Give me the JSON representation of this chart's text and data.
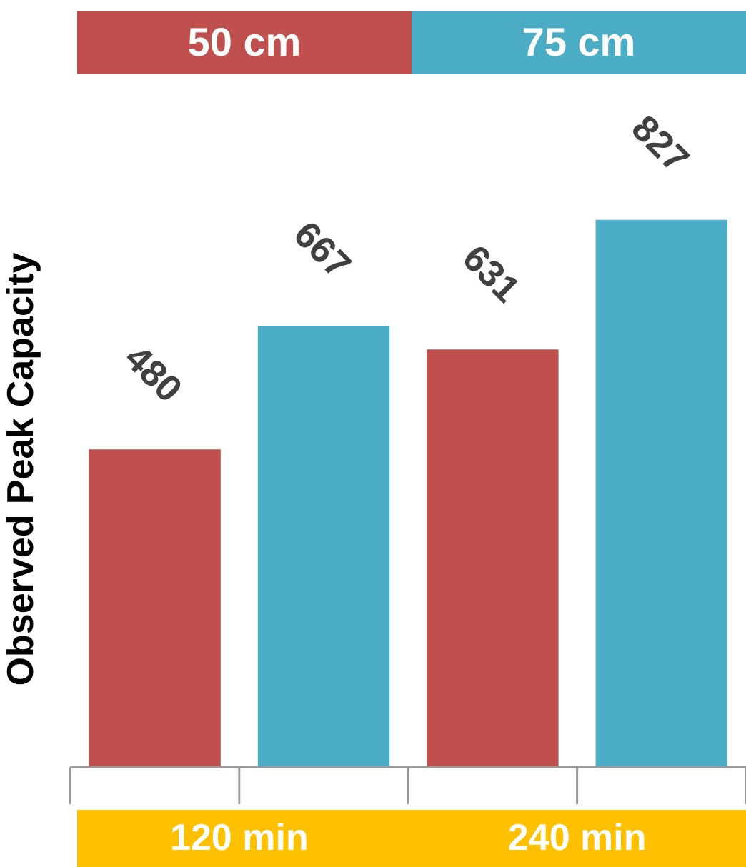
{
  "chart_data": {
    "type": "bar",
    "ylabel": "Observed Peak Capacity",
    "categories": [
      "120 min",
      "240 min"
    ],
    "series": [
      {
        "name": "50 cm",
        "color": "#c0504d",
        "values": [
          480,
          631
        ]
      },
      {
        "name": "75 cm",
        "color": "#4bacc6",
        "values": [
          667,
          827
        ]
      }
    ],
    "data_labels": true,
    "legend": "top",
    "grid": false,
    "tick_labels": "x"
  }
}
